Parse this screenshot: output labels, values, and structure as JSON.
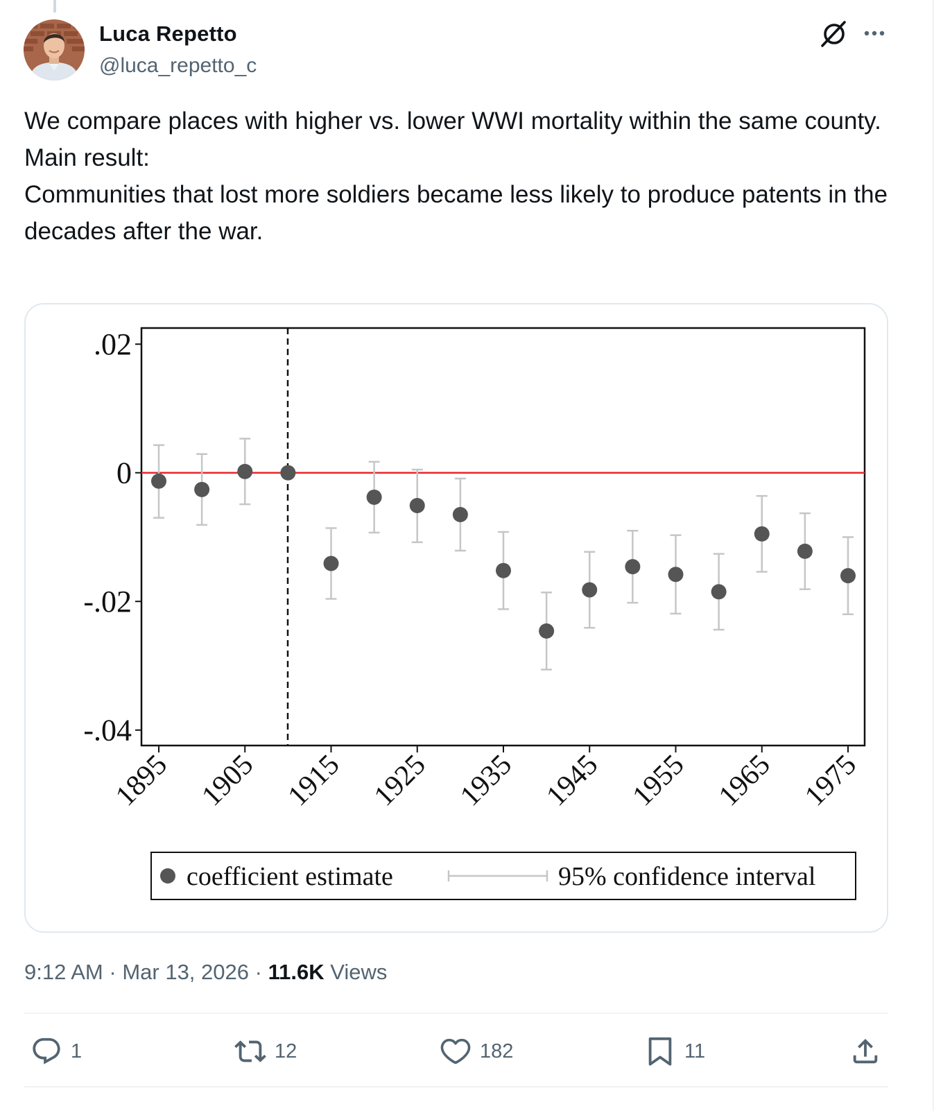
{
  "post": {
    "author_name": "Luca Repetto",
    "author_handle": "@luca_repetto_c",
    "body_lines": [
      "We compare places with higher vs. lower WWI mortality within the same county.",
      "Main result:",
      "Communities that lost more soldiers became less likely to produce patents in the decades after the war."
    ],
    "time": "9:12 AM",
    "date": "Mar 13, 2026",
    "views_count": "11.6K",
    "views_label": "Views",
    "separator": "·"
  },
  "actions": {
    "reply_count": "1",
    "repost_count": "12",
    "like_count": "182",
    "bookmark_count": "11"
  },
  "icons": {
    "grok": "grok-slash-circle-icon",
    "more": "more-dots-icon",
    "reply": "reply-icon",
    "repost": "repost-icon",
    "like": "heart-icon",
    "bookmark": "bookmark-icon",
    "share": "share-icon"
  },
  "colors": {
    "text_primary": "#0f1419",
    "text_secondary": "#536471",
    "zero_line": "#e8262a",
    "point": "#555555",
    "ci": "#c6c6c6"
  },
  "chart_data": {
    "type": "scatter",
    "title": "",
    "xlabel": "",
    "ylabel": "",
    "x_ticks": [
      "1895",
      "1905",
      "1915",
      "1925",
      "1935",
      "1945",
      "1955",
      "1965",
      "1975"
    ],
    "y_ticks": [
      ".02",
      "0",
      "-.02",
      "-.04"
    ],
    "y_tick_values": [
      0.02,
      0,
      -0.02,
      -0.04
    ],
    "ylim": [
      -0.0424,
      0.0225
    ],
    "xlim": [
      1893,
      1977
    ],
    "reference_line": {
      "axis": "y",
      "value": 0,
      "color": "#e8262a"
    },
    "event_line": {
      "axis": "x",
      "value": 1912,
      "style": "dashed"
    },
    "series": [
      {
        "name": "coefficient estimate",
        "x": [
          1895,
          1900,
          1905,
          1910,
          1915,
          1920,
          1925,
          1930,
          1935,
          1940,
          1945,
          1950,
          1955,
          1960,
          1965,
          1970,
          1975
        ],
        "y": [
          -0.0013,
          -0.0026,
          0.0002,
          0.0,
          -0.0141,
          -0.0038,
          -0.0051,
          -0.0065,
          -0.0152,
          -0.0246,
          -0.0182,
          -0.0146,
          -0.0158,
          -0.0185,
          -0.0095,
          -0.0122,
          -0.016
        ],
        "ci_low": [
          -0.007,
          -0.0081,
          -0.0049,
          0.0,
          -0.0196,
          -0.0093,
          -0.0108,
          -0.0121,
          -0.0212,
          -0.0306,
          -0.0241,
          -0.0202,
          -0.0219,
          -0.0244,
          -0.0154,
          -0.0181,
          -0.022
        ],
        "ci_high": [
          0.0043,
          0.0029,
          0.0053,
          0.0,
          -0.0086,
          0.0017,
          0.0005,
          -0.0009,
          -0.0092,
          -0.0186,
          -0.0123,
          -0.009,
          -0.0097,
          -0.0126,
          -0.0036,
          -0.0063,
          -0.01
        ]
      }
    ],
    "legend": {
      "position": "bottom",
      "point_label": "coefficient estimate",
      "ci_label": "95% confidence interval"
    },
    "grid": false
  }
}
